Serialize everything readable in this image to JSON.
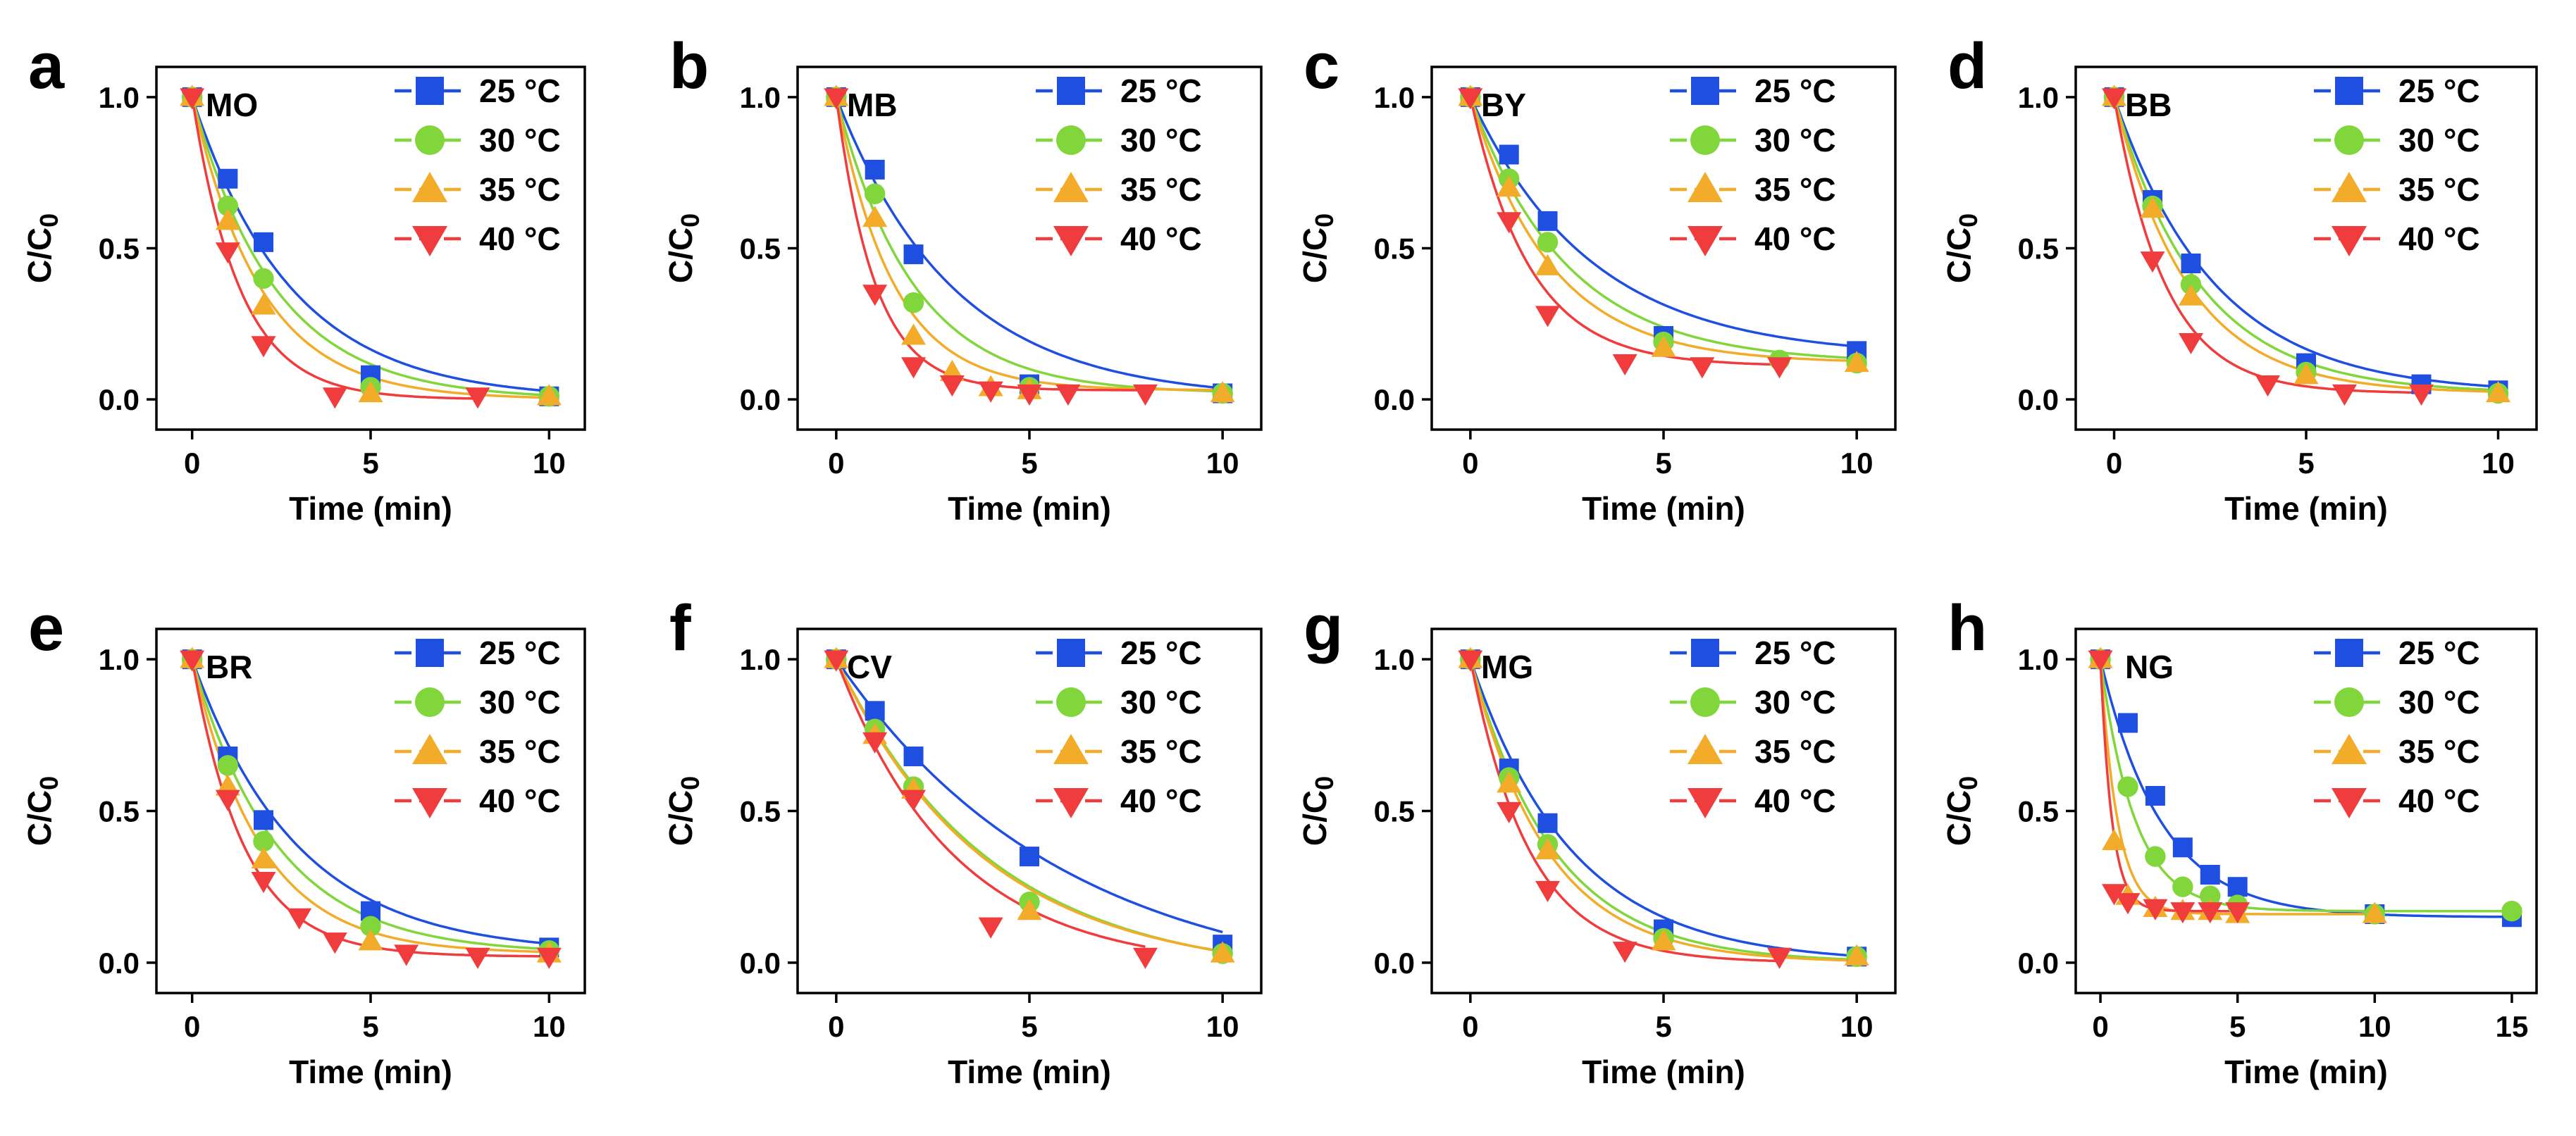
{
  "figure": {
    "colors": {
      "25": "#1f4fe0",
      "30": "#80d63a",
      "35": "#f2ac2a",
      "40": "#f03c3c"
    }
  },
  "chart_data": [
    {
      "type": "scatter",
      "panel": "a",
      "title": "MO",
      "xlabel": "Time (min)",
      "ylabel": "C/C0",
      "xlim": [
        -1,
        11
      ],
      "ylim": [
        -0.1,
        1.1
      ],
      "xticks": [
        0,
        5,
        10
      ],
      "yticks": [
        0.0,
        0.5,
        1.0
      ],
      "tick_labels_x": [
        "0",
        "5",
        "10"
      ],
      "tick_labels_y": [
        "0.0",
        "0.5",
        "1.0"
      ],
      "series": [
        {
          "name": "25 °C",
          "legend": "25 °C",
          "marker": "square",
          "color": "#1f4fe0",
          "k": 0.36,
          "c_inf": 0.0,
          "x": [
            0,
            1,
            2,
            5,
            10
          ],
          "y": [
            1.0,
            0.73,
            0.52,
            0.08,
            0.01
          ]
        },
        {
          "name": "30 °C",
          "legend": "30 °C",
          "marker": "circle",
          "color": "#80d63a",
          "k": 0.43,
          "c_inf": 0.0,
          "x": [
            0,
            1,
            2,
            5,
            10
          ],
          "y": [
            1.0,
            0.64,
            0.4,
            0.04,
            0.01
          ]
        },
        {
          "name": "35 °C",
          "legend": "35 °C",
          "marker": "triangle-up",
          "color": "#f2ac2a",
          "k": 0.52,
          "c_inf": 0.0,
          "x": [
            0,
            1,
            2,
            5,
            10
          ],
          "y": [
            1.0,
            0.59,
            0.31,
            0.02,
            0.01
          ]
        },
        {
          "name": "40 °C",
          "legend": "40 °C",
          "marker": "triangle-down",
          "color": "#f03c3c",
          "k": 0.75,
          "c_inf": 0.0,
          "x": [
            0,
            1,
            2,
            4,
            8
          ],
          "y": [
            1.0,
            0.49,
            0.18,
            0.01,
            0.01
          ]
        }
      ]
    },
    {
      "type": "scatter",
      "panel": "b",
      "title": "MB",
      "xlabel": "Time (min)",
      "ylabel": "C/C0",
      "xlim": [
        -1,
        11
      ],
      "ylim": [
        -0.1,
        1.1
      ],
      "xticks": [
        0,
        5,
        10
      ],
      "yticks": [
        0.0,
        0.5,
        1.0
      ],
      "tick_labels_x": [
        "0",
        "5",
        "10"
      ],
      "tick_labels_y": [
        "0.0",
        "0.5",
        "1.0"
      ],
      "series": [
        {
          "name": "25 °C",
          "legend": "25 °C",
          "marker": "square",
          "color": "#1f4fe0",
          "k": 0.33,
          "c_inf": 0.0,
          "x": [
            0,
            1,
            2,
            5,
            10
          ],
          "y": [
            1.0,
            0.76,
            0.48,
            0.05,
            0.02
          ]
        },
        {
          "name": "30 °C",
          "legend": "30 °C",
          "marker": "circle",
          "color": "#80d63a",
          "k": 0.5,
          "c_inf": 0.02,
          "x": [
            0,
            1,
            2,
            5,
            10
          ],
          "y": [
            1.0,
            0.68,
            0.32,
            0.04,
            0.02
          ]
        },
        {
          "name": "35 °C",
          "legend": "35 °C",
          "marker": "triangle-up",
          "color": "#f2ac2a",
          "k": 0.68,
          "c_inf": 0.03,
          "x": [
            0,
            1,
            2,
            3,
            4,
            5,
            10
          ],
          "y": [
            1.0,
            0.6,
            0.21,
            0.09,
            0.04,
            0.03,
            0.02
          ]
        },
        {
          "name": "40 °C",
          "legend": "40 °C",
          "marker": "triangle-down",
          "color": "#f03c3c",
          "k": 1.0,
          "c_inf": 0.03,
          "x": [
            0,
            1,
            2,
            3,
            4,
            5,
            6,
            8
          ],
          "y": [
            1.0,
            0.35,
            0.11,
            0.05,
            0.03,
            0.02,
            0.02,
            0.02
          ]
        }
      ]
    },
    {
      "type": "scatter",
      "panel": "c",
      "title": "BY",
      "xlabel": "Time (min)",
      "ylabel": "C/C0",
      "xlim": [
        -1,
        11
      ],
      "ylim": [
        -0.1,
        1.1
      ],
      "xticks": [
        0,
        5,
        10
      ],
      "yticks": [
        0.0,
        0.5,
        1.0
      ],
      "tick_labels_x": [
        "0",
        "5",
        "10"
      ],
      "tick_labels_y": [
        "0.0",
        "0.5",
        "1.0"
      ],
      "series": [
        {
          "name": "25 °C",
          "legend": "25 °C",
          "marker": "square",
          "color": "#1f4fe0",
          "k": 0.32,
          "c_inf": 0.14,
          "x": [
            0,
            1,
            2,
            5,
            10
          ],
          "y": [
            1.0,
            0.81,
            0.59,
            0.21,
            0.16
          ]
        },
        {
          "name": "30 °C",
          "legend": "30 °C",
          "marker": "circle",
          "color": "#80d63a",
          "k": 0.4,
          "c_inf": 0.12,
          "x": [
            0,
            1,
            2,
            5,
            8,
            10
          ],
          "y": [
            1.0,
            0.73,
            0.52,
            0.19,
            0.13,
            0.12
          ]
        },
        {
          "name": "35 °C",
          "legend": "35 °C",
          "marker": "triangle-up",
          "color": "#f2ac2a",
          "k": 0.48,
          "c_inf": 0.12,
          "x": [
            0,
            1,
            2,
            5,
            10
          ],
          "y": [
            1.0,
            0.7,
            0.44,
            0.17,
            0.12
          ]
        },
        {
          "name": "40 °C",
          "legend": "40 °C",
          "marker": "triangle-down",
          "color": "#f03c3c",
          "k": 0.65,
          "c_inf": 0.11,
          "x": [
            0,
            1,
            2,
            4,
            6,
            8
          ],
          "y": [
            1.0,
            0.59,
            0.28,
            0.12,
            0.11,
            0.11
          ]
        }
      ]
    },
    {
      "type": "scatter",
      "panel": "d",
      "title": "BB",
      "xlabel": "Time (min)",
      "ylabel": "C/C0",
      "xlim": [
        -1,
        11
      ],
      "ylim": [
        -0.1,
        1.1
      ],
      "xticks": [
        0,
        5,
        10
      ],
      "yticks": [
        0.0,
        0.5,
        1.0
      ],
      "tick_labels_x": [
        "0",
        "5",
        "10"
      ],
      "tick_labels_y": [
        "0.0",
        "0.5",
        "1.0"
      ],
      "series": [
        {
          "name": "25 °C",
          "legend": "25 °C",
          "marker": "square",
          "color": "#1f4fe0",
          "k": 0.38,
          "c_inf": 0.02,
          "x": [
            0,
            1,
            2,
            5,
            8,
            10
          ],
          "y": [
            1.0,
            0.66,
            0.45,
            0.12,
            0.05,
            0.03
          ]
        },
        {
          "name": "30 °C",
          "legend": "30 °C",
          "marker": "circle",
          "color": "#80d63a",
          "k": 0.45,
          "c_inf": 0.02,
          "x": [
            0,
            1,
            2,
            5,
            10
          ],
          "y": [
            1.0,
            0.64,
            0.38,
            0.09,
            0.02
          ]
        },
        {
          "name": "35 °C",
          "legend": "35 °C",
          "marker": "triangle-up",
          "color": "#f2ac2a",
          "k": 0.52,
          "c_inf": 0.02,
          "x": [
            0,
            1,
            2,
            5,
            10
          ],
          "y": [
            1.0,
            0.63,
            0.34,
            0.08,
            0.02
          ]
        },
        {
          "name": "40 °C",
          "legend": "40 °C",
          "marker": "triangle-down",
          "color": "#f03c3c",
          "k": 0.75,
          "c_inf": 0.02,
          "x": [
            0,
            1,
            2,
            4,
            6,
            8
          ],
          "y": [
            1.0,
            0.46,
            0.19,
            0.05,
            0.02,
            0.02
          ]
        }
      ]
    },
    {
      "type": "scatter",
      "panel": "e",
      "title": "BR",
      "xlabel": "Time (min)",
      "ylabel": "C/C0",
      "xlim": [
        -1,
        11
      ],
      "ylim": [
        -0.1,
        1.1
      ],
      "xticks": [
        0,
        5,
        10
      ],
      "yticks": [
        0.0,
        0.5,
        1.0
      ],
      "tick_labels_x": [
        "0",
        "5",
        "10"
      ],
      "tick_labels_y": [
        "0.0",
        "0.5",
        "1.0"
      ],
      "series": [
        {
          "name": "25 °C",
          "legend": "25 °C",
          "marker": "square",
          "color": "#1f4fe0",
          "k": 0.34,
          "c_inf": 0.03,
          "x": [
            0,
            1,
            2,
            5,
            10
          ],
          "y": [
            1.0,
            0.68,
            0.47,
            0.17,
            0.05
          ]
        },
        {
          "name": "30 °C",
          "legend": "30 °C",
          "marker": "circle",
          "color": "#80d63a",
          "k": 0.42,
          "c_inf": 0.03,
          "x": [
            0,
            1,
            2,
            5,
            10
          ],
          "y": [
            1.0,
            0.65,
            0.4,
            0.12,
            0.04
          ]
        },
        {
          "name": "35 °C",
          "legend": "35 °C",
          "marker": "triangle-up",
          "color": "#f2ac2a",
          "k": 0.52,
          "c_inf": 0.03,
          "x": [
            0,
            1,
            2,
            5,
            10
          ],
          "y": [
            1.0,
            0.58,
            0.34,
            0.07,
            0.03
          ]
        },
        {
          "name": "40 °C",
          "legend": "40 °C",
          "marker": "triangle-down",
          "color": "#f03c3c",
          "k": 0.68,
          "c_inf": 0.02,
          "x": [
            0,
            1,
            2,
            3,
            4,
            6,
            8,
            10
          ],
          "y": [
            1.0,
            0.54,
            0.27,
            0.15,
            0.07,
            0.03,
            0.02,
            0.02
          ]
        }
      ]
    },
    {
      "type": "scatter",
      "panel": "f",
      "title": "CV",
      "xlabel": "Time (min)",
      "ylabel": "C/C0",
      "xlim": [
        -1,
        11
      ],
      "ylim": [
        -0.1,
        1.1
      ],
      "xticks": [
        0,
        5,
        10
      ],
      "yticks": [
        0.0,
        0.5,
        1.0
      ],
      "tick_labels_x": [
        "0",
        "5",
        "10"
      ],
      "tick_labels_y": [
        "0.0",
        "0.5",
        "1.0"
      ],
      "series": [
        {
          "name": "25 °C",
          "legend": "25 °C",
          "marker": "square",
          "color": "#1f4fe0",
          "k": 0.17,
          "c_inf": -0.1,
          "x": [
            0,
            1,
            2,
            5,
            10
          ],
          "y": [
            1.0,
            0.83,
            0.68,
            0.35,
            0.06
          ]
        },
        {
          "name": "30 °C",
          "legend": "30 °C",
          "marker": "circle",
          "color": "#80d63a",
          "k": 0.25,
          "c_inf": -0.05,
          "x": [
            0,
            1,
            2,
            5,
            10
          ],
          "y": [
            1.0,
            0.77,
            0.58,
            0.2,
            0.03
          ]
        },
        {
          "name": "35 °C",
          "legend": "35 °C",
          "marker": "triangle-up",
          "color": "#f2ac2a",
          "k": 0.26,
          "c_inf": -0.04,
          "x": [
            0,
            1,
            2,
            5,
            10
          ],
          "y": [
            1.0,
            0.75,
            0.57,
            0.17,
            0.03
          ]
        },
        {
          "name": "40 °C",
          "legend": "40 °C",
          "marker": "triangle-down",
          "color": "#f03c3c",
          "k": 0.33,
          "c_inf": -0.02,
          "x": [
            0,
            1,
            2,
            4,
            8
          ],
          "y": [
            1.0,
            0.73,
            0.54,
            0.12,
            0.02
          ]
        }
      ]
    },
    {
      "type": "scatter",
      "panel": "g",
      "title": "MG",
      "xlabel": "Time (min)",
      "ylabel": "C/C0",
      "xlim": [
        -1,
        11
      ],
      "ylim": [
        -0.1,
        1.1
      ],
      "xticks": [
        0,
        5,
        10
      ],
      "yticks": [
        0.0,
        0.5,
        1.0
      ],
      "tick_labels_x": [
        "0",
        "5",
        "10"
      ],
      "tick_labels_y": [
        "0.0",
        "0.5",
        "1.0"
      ],
      "series": [
        {
          "name": "25 °C",
          "legend": "25 °C",
          "marker": "square",
          "color": "#1f4fe0",
          "k": 0.38,
          "c_inf": 0.0,
          "x": [
            0,
            1,
            2,
            5,
            10
          ],
          "y": [
            1.0,
            0.64,
            0.46,
            0.11,
            0.02
          ]
        },
        {
          "name": "30 °C",
          "legend": "30 °C",
          "marker": "circle",
          "color": "#80d63a",
          "k": 0.46,
          "c_inf": 0.0,
          "x": [
            0,
            1,
            2,
            5,
            10
          ],
          "y": [
            1.0,
            0.61,
            0.39,
            0.08,
            0.02
          ]
        },
        {
          "name": "35 °C",
          "legend": "35 °C",
          "marker": "triangle-up",
          "color": "#f2ac2a",
          "k": 0.5,
          "c_inf": 0.0,
          "x": [
            0,
            1,
            2,
            5,
            10
          ],
          "y": [
            1.0,
            0.59,
            0.37,
            0.07,
            0.02
          ]
        },
        {
          "name": "40 °C",
          "legend": "40 °C",
          "marker": "triangle-down",
          "color": "#f03c3c",
          "k": 0.65,
          "c_inf": 0.0,
          "x": [
            0,
            1,
            2,
            4,
            8
          ],
          "y": [
            1.0,
            0.5,
            0.24,
            0.04,
            0.02
          ]
        }
      ]
    },
    {
      "type": "scatter",
      "panel": "h",
      "title": "NG",
      "xlabel": "Time (min)",
      "ylabel": "C/C0",
      "xlim": [
        -0.9,
        15.9
      ],
      "ylim": [
        -0.1,
        1.1
      ],
      "xticks": [
        0,
        5,
        10,
        15
      ],
      "yticks": [
        0.0,
        0.5,
        1.0
      ],
      "tick_labels_x": [
        "0",
        "5",
        "10",
        "15"
      ],
      "tick_labels_y": [
        "0.0",
        "0.5",
        "1.0"
      ],
      "series": [
        {
          "name": "25 °C",
          "legend": "25 °C",
          "marker": "square",
          "color": "#1f4fe0",
          "k": 0.45,
          "c_inf": 0.15,
          "x": [
            0,
            1,
            2,
            3,
            4,
            5,
            10,
            15
          ],
          "y": [
            1.0,
            0.79,
            0.55,
            0.38,
            0.29,
            0.25,
            0.16,
            0.15
          ]
        },
        {
          "name": "30 °C",
          "legend": "30 °C",
          "marker": "circle",
          "color": "#80d63a",
          "k": 0.8,
          "c_inf": 0.17,
          "x": [
            0,
            1,
            2,
            3,
            4,
            5,
            10,
            15
          ],
          "y": [
            1.0,
            0.58,
            0.35,
            0.25,
            0.22,
            0.19,
            0.16,
            0.17
          ]
        },
        {
          "name": "35 °C",
          "legend": "35 °C",
          "marker": "triangle-up",
          "color": "#f2ac2a",
          "k": 1.6,
          "c_inf": 0.16,
          "x": [
            0,
            0.5,
            1,
            2,
            3,
            4,
            5,
            10
          ],
          "y": [
            1.0,
            0.4,
            0.22,
            0.18,
            0.17,
            0.17,
            0.16,
            0.16
          ]
        },
        {
          "name": "40 °C",
          "legend": "40 °C",
          "marker": "triangle-down",
          "color": "#f03c3c",
          "k": 2.4,
          "c_inf": 0.17,
          "x": [
            0,
            0.5,
            1,
            2,
            3,
            4,
            5
          ],
          "y": [
            1.0,
            0.23,
            0.2,
            0.18,
            0.17,
            0.17,
            0.17
          ]
        }
      ]
    }
  ]
}
